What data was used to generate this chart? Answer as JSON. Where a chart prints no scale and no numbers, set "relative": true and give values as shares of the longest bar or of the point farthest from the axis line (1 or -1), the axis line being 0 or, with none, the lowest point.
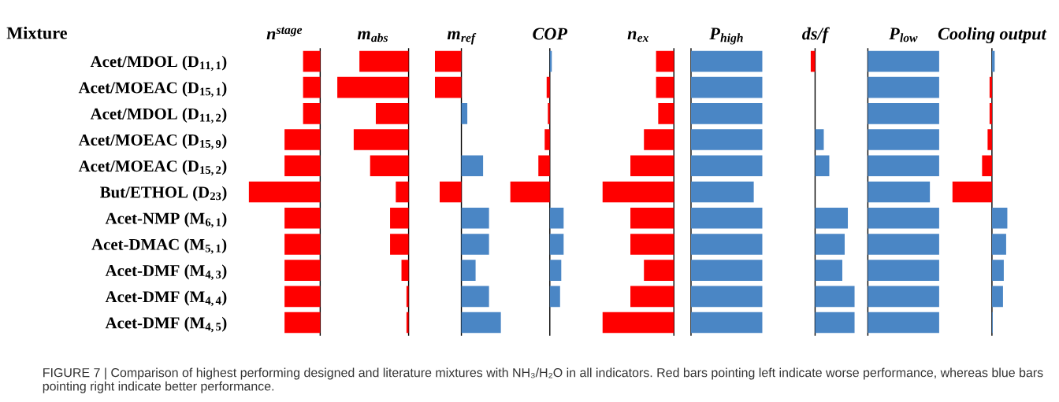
{
  "chart_data": [
    {
      "type": "bar",
      "orientation": "horizontal",
      "relative": true,
      "tick_labels": "y",
      "title": "n$^{stage}$",
      "annotations": [
        "Mixture",
        "FIGURE 7 | Comparison of highest performing designed and literature mixtures with NH₃/H₂O in all indicators. Red bars pointing left indicate worse performance, whereas blue bars pointing right indicate better performance."
      ],
      "categories": [
        "Acet/MDOL (D$_{11,1}$)",
        "Acet/MOEAC (D$_{15,1}$)",
        "Acet/MDOL (D$_{11,2}$)",
        "Acet/MOEAC (D$_{15,9}$)",
        "Acet/MOEAC (D$_{15,2}$)",
        "But/ETHOL (D$_{23}$)",
        "Acet-NMP (M$_{6,1}$)",
        "Acet-DMAC (M$_{5,1}$)",
        "Acet-DMF (M$_{4,3}$)",
        "Acet-DMF (M$_{4,4}$)",
        "Acet-DMF (M$_{4,5}$)"
      ],
      "values": [
        -0.24,
        -0.24,
        -0.24,
        -0.5,
        -0.5,
        -1,
        -0.5,
        -0.5,
        -0.5,
        -0.5,
        -0.5
      ],
      "colors": [
        "#ff0000",
        "#ff0000",
        "#ff0000",
        "#ff0000",
        "#ff0000",
        "#ff0000",
        "#ff0000",
        "#ff0000",
        "#ff0000",
        "#ff0000",
        "#ff0000"
      ]
    },
    {
      "type": "bar",
      "orientation": "horizontal",
      "relative": true,
      "tick_labels": false,
      "title": "m$_{abs}$",
      "values": [
        -0.69,
        -1,
        -0.46,
        -0.77,
        -0.54,
        -0.18,
        -0.26,
        -0.26,
        -0.1,
        -0.03,
        -0.03
      ],
      "colors": [
        "#ff0000",
        "#ff0000",
        "#ff0000",
        "#ff0000",
        "#ff0000",
        "#ff0000",
        "#ff0000",
        "#ff0000",
        "#ff0000",
        "#ff0000",
        "#ff0000"
      ]
    },
    {
      "type": "bar",
      "orientation": "horizontal",
      "relative": true,
      "tick_labels": false,
      "title": "m$_{ref}$",
      "values": [
        -0.67,
        -0.67,
        0.15,
        0,
        0.55,
        -0.55,
        0.7,
        0.7,
        0.36,
        0.7,
        1
      ],
      "colors": [
        "#ff0000",
        "#ff0000",
        "#4a86c5",
        "#4a86c5",
        "#4a86c5",
        "#ff0000",
        "#4a86c5",
        "#4a86c5",
        "#4a86c5",
        "#4a86c5",
        "#4a86c5"
      ]
    },
    {
      "type": "bar",
      "orientation": "horizontal",
      "relative": true,
      "tick_labels": false,
      "title": "COP",
      "values": [
        0.05,
        -0.08,
        -0.05,
        -0.13,
        -0.29,
        -1,
        0.35,
        0.35,
        0.29,
        0.26,
        0
      ],
      "colors": [
        "#4a86c5",
        "#ff0000",
        "#ff0000",
        "#ff0000",
        "#ff0000",
        "#ff0000",
        "#4a86c5",
        "#4a86c5",
        "#4a86c5",
        "#4a86c5",
        "#4a86c5"
      ]
    },
    {
      "type": "bar",
      "orientation": "horizontal",
      "relative": true,
      "tick_labels": false,
      "title": "n$_{ex}$",
      "values": [
        -0.25,
        -0.25,
        -0.22,
        -0.42,
        -0.61,
        -1,
        -0.61,
        -0.61,
        -0.42,
        -0.61,
        -1
      ],
      "colors": [
        "#ff0000",
        "#ff0000",
        "#ff0000",
        "#ff0000",
        "#ff0000",
        "#ff0000",
        "#ff0000",
        "#ff0000",
        "#ff0000",
        "#ff0000",
        "#ff0000"
      ]
    },
    {
      "type": "bar",
      "orientation": "horizontal",
      "relative": true,
      "tick_labels": false,
      "title": "P$_{high}$",
      "values": [
        1,
        1,
        1,
        1,
        1,
        0.88,
        1,
        1,
        1,
        1,
        1
      ],
      "colors": [
        "#4a86c5",
        "#4a86c5",
        "#4a86c5",
        "#4a86c5",
        "#4a86c5",
        "#4a86c5",
        "#4a86c5",
        "#4a86c5",
        "#4a86c5",
        "#4a86c5",
        "#4a86c5"
      ]
    },
    {
      "type": "bar",
      "orientation": "horizontal",
      "relative": true,
      "tick_labels": false,
      "title": "ds/f",
      "values": [
        -0.11,
        0,
        0,
        0.22,
        0.36,
        0,
        0.83,
        0.75,
        0.69,
        1,
        1
      ],
      "colors": [
        "#ff0000",
        "#4a86c5",
        "#4a86c5",
        "#4a86c5",
        "#4a86c5",
        "#4a86c5",
        "#4a86c5",
        "#4a86c5",
        "#4a86c5",
        "#4a86c5",
        "#4a86c5"
      ]
    },
    {
      "type": "bar",
      "orientation": "horizontal",
      "relative": true,
      "tick_labels": false,
      "title": "P$_{low}$",
      "values": [
        1,
        1,
        1,
        1,
        1,
        0.87,
        1,
        1,
        1,
        1,
        1
      ],
      "colors": [
        "#4a86c5",
        "#4a86c5",
        "#4a86c5",
        "#4a86c5",
        "#4a86c5",
        "#4a86c5",
        "#4a86c5",
        "#4a86c5",
        "#4a86c5",
        "#4a86c5",
        "#4a86c5"
      ]
    },
    {
      "type": "bar",
      "orientation": "horizontal",
      "relative": true,
      "tick_labels": false,
      "title": "Cooling output",
      "values": [
        0.07,
        -0.06,
        -0.06,
        -0.11,
        -0.25,
        -1,
        0.39,
        0.36,
        0.3,
        0.28,
        0.02
      ],
      "colors": [
        "#4a86c5",
        "#ff0000",
        "#ff0000",
        "#ff0000",
        "#ff0000",
        "#ff0000",
        "#4a86c5",
        "#4a86c5",
        "#4a86c5",
        "#4a86c5",
        "#4a86c5"
      ]
    }
  ]
}
